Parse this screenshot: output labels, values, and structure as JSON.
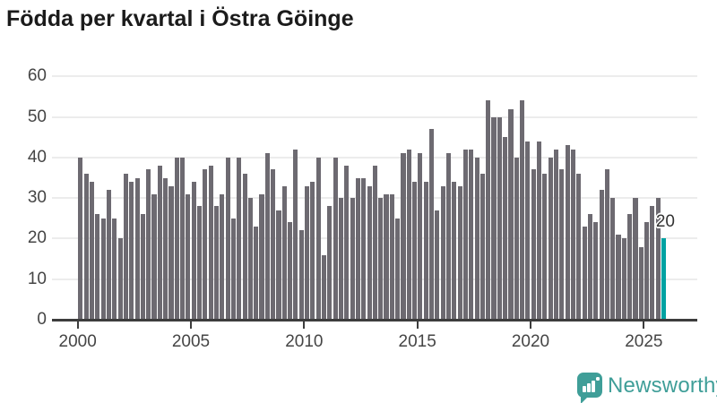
{
  "title": "Födda per kvartal i Östra Göinge",
  "chart_data": {
    "type": "bar",
    "title": "Födda per kvartal i Östra Göinge",
    "x_unit": "quarter",
    "start": "2000 Q1",
    "end": "2025 Q4",
    "values": [
      40,
      36,
      34,
      26,
      25,
      32,
      25,
      20,
      36,
      34,
      35,
      26,
      37,
      31,
      38,
      35,
      33,
      40,
      40,
      31,
      34,
      28,
      37,
      38,
      28,
      31,
      40,
      25,
      40,
      36,
      30,
      23,
      31,
      41,
      37,
      27,
      33,
      24,
      42,
      22,
      33,
      34,
      40,
      16,
      28,
      40,
      30,
      38,
      30,
      35,
      35,
      33,
      38,
      30,
      31,
      31,
      25,
      41,
      42,
      34,
      41,
      34,
      47,
      27,
      33,
      41,
      34,
      33,
      42,
      42,
      40,
      36,
      54,
      50,
      50,
      45,
      52,
      40,
      54,
      44,
      37,
      44,
      36,
      40,
      42,
      37,
      43,
      42,
      36,
      23,
      26,
      24,
      32,
      37,
      30,
      21,
      20,
      26,
      30,
      18,
      24,
      28,
      30,
      20
    ],
    "start_year": 2000,
    "highlight_index": 103,
    "highlight_label": "20",
    "x_tick_labels": [
      "2000",
      "2005",
      "2010",
      "2015",
      "2020",
      "2025"
    ],
    "y_tick_labels": [
      "0",
      "10",
      "20",
      "30",
      "40",
      "50",
      "60"
    ],
    "ylim": [
      0,
      60
    ],
    "grid": "horizontal",
    "legend": "none",
    "bar_color": "#6d6a71",
    "highlight_color": "#00a2a2"
  },
  "annotation": {
    "value_label": "20"
  },
  "footer": {
    "brand": "Newsworthy",
    "brand_color": "#3f9e98"
  }
}
